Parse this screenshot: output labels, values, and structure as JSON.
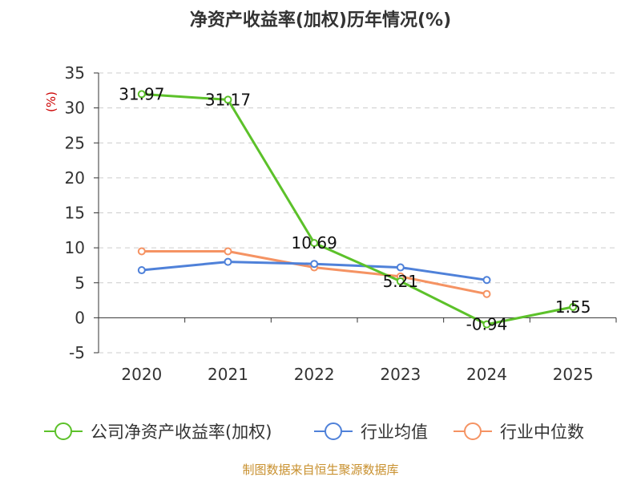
{
  "chart_data": {
    "type": "line",
    "title": "净资产收益率(加权)历年情况(%)",
    "unit_label": "(%)",
    "categories": [
      "2020",
      "2021",
      "2022",
      "2023",
      "2024",
      "2025"
    ],
    "ylim": [
      -5,
      35
    ],
    "yticks": [
      -5,
      0,
      5,
      10,
      15,
      20,
      25,
      30,
      35
    ],
    "ytick_labels": [
      "-5",
      "0",
      "5",
      "10",
      "15",
      "20",
      "25",
      "30",
      "35"
    ],
    "grid": true,
    "legend_position": "bottom",
    "series": [
      {
        "name": "公司净资产收益率(加权)",
        "color": "#5cc12a",
        "values": [
          31.97,
          31.17,
          10.69,
          5.21,
          -0.94,
          1.55
        ],
        "data_labels": [
          "31.97",
          "31.17",
          "10.69",
          "5.21",
          "-0.94",
          "1.55"
        ]
      },
      {
        "name": "行业均值",
        "color": "#4f81d9",
        "values": [
          6.8,
          8.0,
          7.7,
          7.2,
          5.4,
          null
        ]
      },
      {
        "name": "行业中位数",
        "color": "#f59363",
        "values": [
          9.5,
          9.5,
          7.2,
          5.9,
          3.4,
          null
        ]
      }
    ],
    "source": "制图数据来自恒生聚源数据库"
  }
}
